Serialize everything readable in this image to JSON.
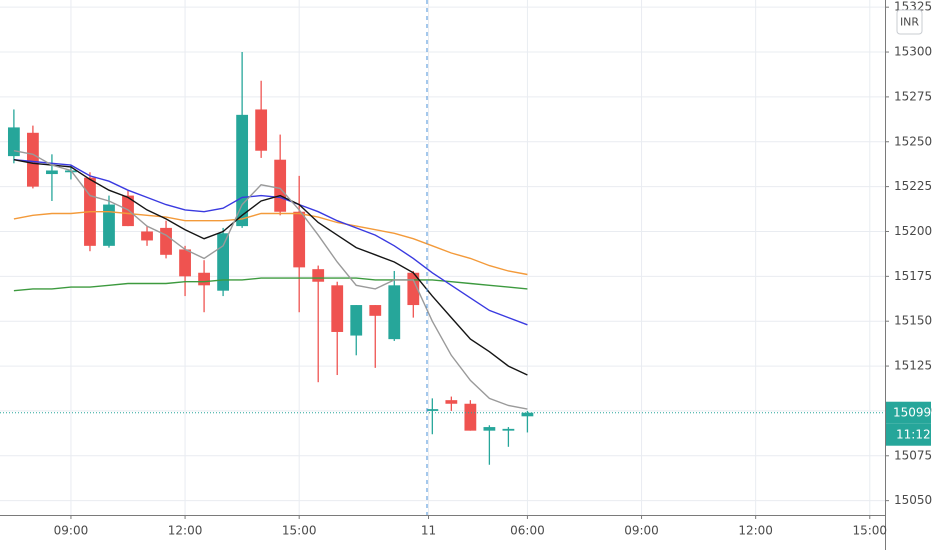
{
  "chart_data": {
    "type": "candlestick",
    "currency": "INR",
    "last_price": 15099,
    "countdown": "11:12",
    "x": [
      0,
      1,
      2,
      3,
      4,
      5,
      6,
      7,
      8,
      9,
      10,
      11,
      12,
      13,
      14,
      15,
      16,
      17,
      18,
      19,
      20,
      21,
      22,
      23,
      24,
      25,
      26,
      27
    ],
    "open": [
      15242,
      15255,
      15232,
      15233,
      15230,
      15192,
      15220,
      15200,
      15202,
      15190,
      15177,
      15167,
      15203,
      15268,
      15240,
      15211,
      15179,
      15170,
      15142,
      15159,
      15140,
      15177,
      15100,
      15106,
      15104,
      15089,
      15089,
      15097
    ],
    "high": [
      15268,
      15259,
      15243,
      15237,
      15233,
      15220,
      15223,
      15203,
      15206,
      15192,
      15184,
      15202,
      15300,
      15284,
      15254,
      15231,
      15181,
      15172,
      15159,
      15159,
      15178,
      15178,
      15107,
      15108,
      15106,
      15092,
      15091,
      15100
    ],
    "low": [
      15238,
      15224,
      15217,
      15229,
      15189,
      15191,
      15203,
      15192,
      15185,
      15164,
      15155,
      15164,
      15202,
      15241,
      15209,
      15155,
      15116,
      15120,
      15131,
      15124,
      15139,
      15152,
      15087,
      15100,
      15089,
      15070,
      15080,
      15088
    ],
    "close": [
      15258,
      15225,
      15234,
      15234,
      15192,
      15215,
      15203,
      15195,
      15187,
      15175,
      15170,
      15199,
      15265,
      15245,
      15211,
      15180,
      15172,
      15144,
      15159,
      15153,
      15170,
      15159,
      15101,
      15104,
      15089,
      15091,
      15090,
      15099
    ],
    "up_color": "#26a69a",
    "down_color": "#ef5350",
    "lines": [
      {
        "color": "#f39a3a",
        "values": [
          15207,
          15209,
          15210,
          15210,
          15211,
          15211,
          15210,
          15209,
          15208,
          15206,
          15206,
          15206,
          15207,
          15210,
          15210,
          15210,
          15208,
          15205,
          15203,
          15201,
          15199,
          15196,
          15192,
          15188,
          15185,
          15181,
          15178,
          15176
        ]
      },
      {
        "color": "#3d9a3f",
        "values": [
          15167,
          15168,
          15168,
          15169,
          15169,
          15170,
          15171,
          15171,
          15171,
          15172,
          15172,
          15173,
          15173,
          15174,
          15174,
          15174,
          15174,
          15174,
          15174,
          15173,
          15173,
          15173,
          15173,
          15172,
          15171,
          15170,
          15169,
          15168
        ]
      },
      {
        "color": "#3a3ae0",
        "values": [
          15240,
          15239,
          15238,
          15237,
          15231,
          15228,
          15223,
          15219,
          15215,
          15212,
          15211,
          15213,
          15219,
          15220,
          15219,
          15215,
          15211,
          15206,
          15202,
          15198,
          15192,
          15185,
          15177,
          15170,
          15163,
          15156,
          15152,
          15148
        ]
      },
      {
        "color": "#151515",
        "values": [
          15240,
          15238,
          15237,
          15236,
          15229,
          15223,
          15219,
          15212,
          15207,
          15201,
          15196,
          15200,
          15209,
          15217,
          15220,
          15215,
          15205,
          15198,
          15191,
          15187,
          15183,
          15177,
          15164,
          15152,
          15140,
          15133,
          15125,
          15120
        ]
      },
      {
        "color": "#9a9a9a",
        "values": [
          15245,
          15243,
          15237,
          15234,
          15220,
          15217,
          15212,
          15203,
          15198,
          15190,
          15185,
          15192,
          15215,
          15226,
          15224,
          15212,
          15198,
          15183,
          15170,
          15168,
          15173,
          15173,
          15150,
          15131,
          15117,
          15107,
          15103,
          15101
        ]
      }
    ],
    "xlim": [
      -0.73,
      45.8
    ],
    "xticks": [
      {
        "value": 3,
        "label": "09:00"
      },
      {
        "value": 9,
        "label": "12:00"
      },
      {
        "value": 15,
        "label": "15:00"
      },
      {
        "value": 21.8,
        "label": "11"
      },
      {
        "value": 27,
        "label": "06:00"
      },
      {
        "value": 33,
        "label": "09:00"
      },
      {
        "value": 39,
        "label": "12:00"
      },
      {
        "value": 45,
        "label": "15:00"
      }
    ],
    "ylim": [
      15042,
      15329
    ],
    "yticks": [
      15050,
      15075,
      15100,
      15125,
      15150,
      15175,
      15200,
      15225,
      15250,
      15275,
      15300,
      15325
    ],
    "grid": true
  }
}
